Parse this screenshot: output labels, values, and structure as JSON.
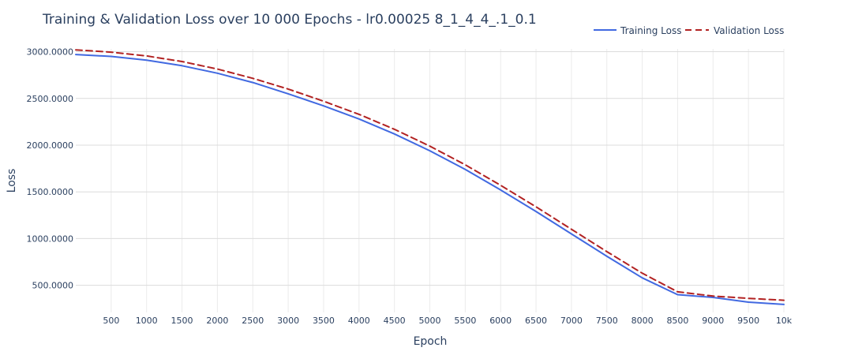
{
  "chart_data": {
    "type": "line",
    "title": "Training & Validation Loss over 10 000 Epochs - lr0.00025 8_1_4_4_.1_0.1",
    "xlabel": "Epoch",
    "ylabel": "Loss",
    "xlim": [
      0,
      10000
    ],
    "ylim": [
      210,
      3030
    ],
    "x_ticks": [
      500,
      1000,
      1500,
      2000,
      2500,
      3000,
      3500,
      4000,
      4500,
      5000,
      5500,
      6000,
      6500,
      7000,
      7500,
      8000,
      8500,
      9000,
      9500,
      10000
    ],
    "x_tick_labels": [
      "500",
      "1000",
      "1500",
      "2000",
      "2500",
      "3000",
      "3500",
      "4000",
      "4500",
      "5000",
      "5500",
      "6000",
      "6500",
      "7000",
      "7500",
      "8000",
      "8500",
      "9000",
      "9500",
      "10k"
    ],
    "y_ticks": [
      500,
      1000,
      1500,
      2000,
      2500,
      3000
    ],
    "y_tick_labels": [
      "500.0000",
      "1000.0000",
      "1500.0000",
      "2000.0000",
      "2500.0000",
      "3000.0000"
    ],
    "grid": true,
    "legend_position": "top-right",
    "series": [
      {
        "name": "Training Loss",
        "color": "#4169e1",
        "dash": "solid",
        "x": [
          0,
          500,
          1000,
          1500,
          2000,
          2500,
          3000,
          3500,
          4000,
          4500,
          5000,
          5500,
          6000,
          6500,
          7000,
          7500,
          8000,
          8500,
          9000,
          9500,
          10000
        ],
        "values": [
          2970,
          2950,
          2910,
          2850,
          2770,
          2670,
          2550,
          2420,
          2280,
          2120,
          1940,
          1740,
          1520,
          1290,
          1050,
          810,
          580,
          400,
          370,
          320,
          295
        ]
      },
      {
        "name": "Validation Loss",
        "color": "#b22222",
        "dash": "dashed",
        "x": [
          0,
          500,
          1000,
          1500,
          2000,
          2500,
          3000,
          3500,
          4000,
          4500,
          5000,
          5500,
          6000,
          6500,
          7000,
          7500,
          8000,
          8500,
          9000,
          9500,
          10000
        ],
        "values": [
          3020,
          2995,
          2955,
          2895,
          2815,
          2715,
          2600,
          2470,
          2330,
          2170,
          1990,
          1790,
          1570,
          1340,
          1100,
          860,
          630,
          430,
          385,
          360,
          340
        ]
      }
    ]
  }
}
